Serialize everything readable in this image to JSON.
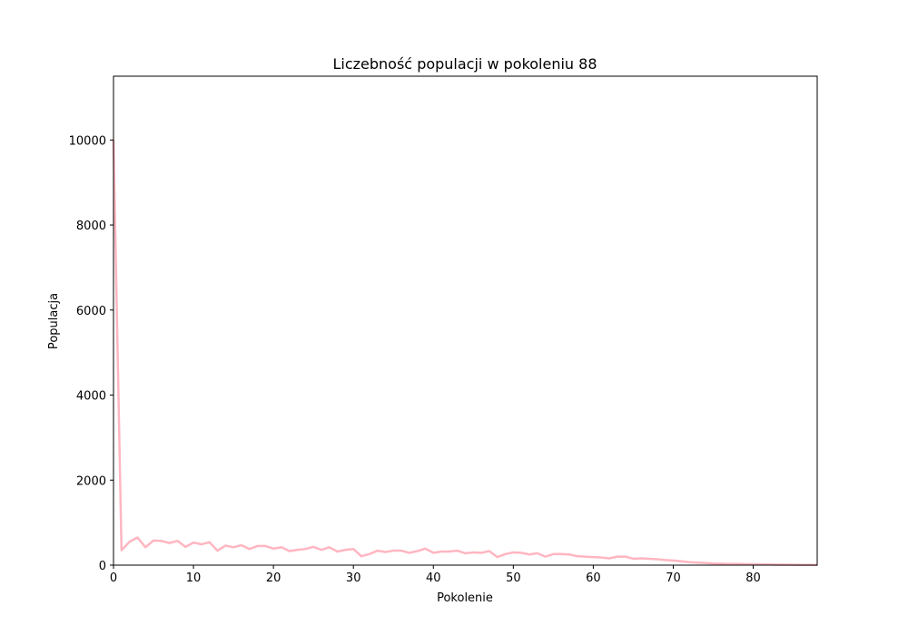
{
  "colors": {
    "line": "#ffb6c1",
    "axis": "#000000",
    "background": "#ffffff"
  },
  "chart_data": {
    "type": "line",
    "title": "Liczebność populacji w pokoleniu 88",
    "xlabel": "Pokolenie",
    "ylabel": "Populacja",
    "xlim": [
      0,
      88
    ],
    "ylim": [
      0,
      11500
    ],
    "xticks": [
      0,
      10,
      20,
      30,
      40,
      50,
      60,
      70,
      80
    ],
    "yticks": [
      0,
      2000,
      4000,
      6000,
      8000,
      10000
    ],
    "grid": false,
    "series": [
      {
        "name": "Populacja",
        "x": [
          0,
          1,
          2,
          3,
          4,
          5,
          6,
          7,
          8,
          9,
          10,
          11,
          12,
          13,
          14,
          15,
          16,
          17,
          18,
          19,
          20,
          21,
          22,
          23,
          24,
          25,
          26,
          27,
          28,
          29,
          30,
          31,
          32,
          33,
          34,
          35,
          36,
          37,
          38,
          39,
          40,
          41,
          42,
          43,
          44,
          45,
          46,
          47,
          48,
          49,
          50,
          51,
          52,
          53,
          54,
          55,
          56,
          57,
          58,
          59,
          60,
          61,
          62,
          63,
          64,
          65,
          66,
          67,
          68,
          69,
          70,
          71,
          72,
          73,
          74,
          75,
          76,
          77,
          78,
          79,
          80,
          81,
          82,
          83,
          84,
          85,
          86,
          87,
          88
        ],
        "values": [
          10000,
          350,
          550,
          650,
          420,
          580,
          570,
          520,
          570,
          430,
          530,
          490,
          540,
          340,
          460,
          420,
          470,
          380,
          450,
          450,
          390,
          420,
          330,
          360,
          380,
          430,
          360,
          420,
          320,
          360,
          380,
          210,
          260,
          340,
          310,
          340,
          340,
          290,
          330,
          390,
          290,
          320,
          320,
          340,
          280,
          300,
          290,
          330,
          190,
          260,
          300,
          290,
          250,
          280,
          200,
          260,
          260,
          250,
          210,
          200,
          190,
          180,
          160,
          200,
          200,
          150,
          160,
          150,
          140,
          120,
          110,
          90,
          70,
          60,
          50,
          40,
          35,
          30,
          30,
          25,
          20,
          18,
          15,
          12,
          10,
          8,
          6,
          4,
          2
        ]
      }
    ]
  }
}
